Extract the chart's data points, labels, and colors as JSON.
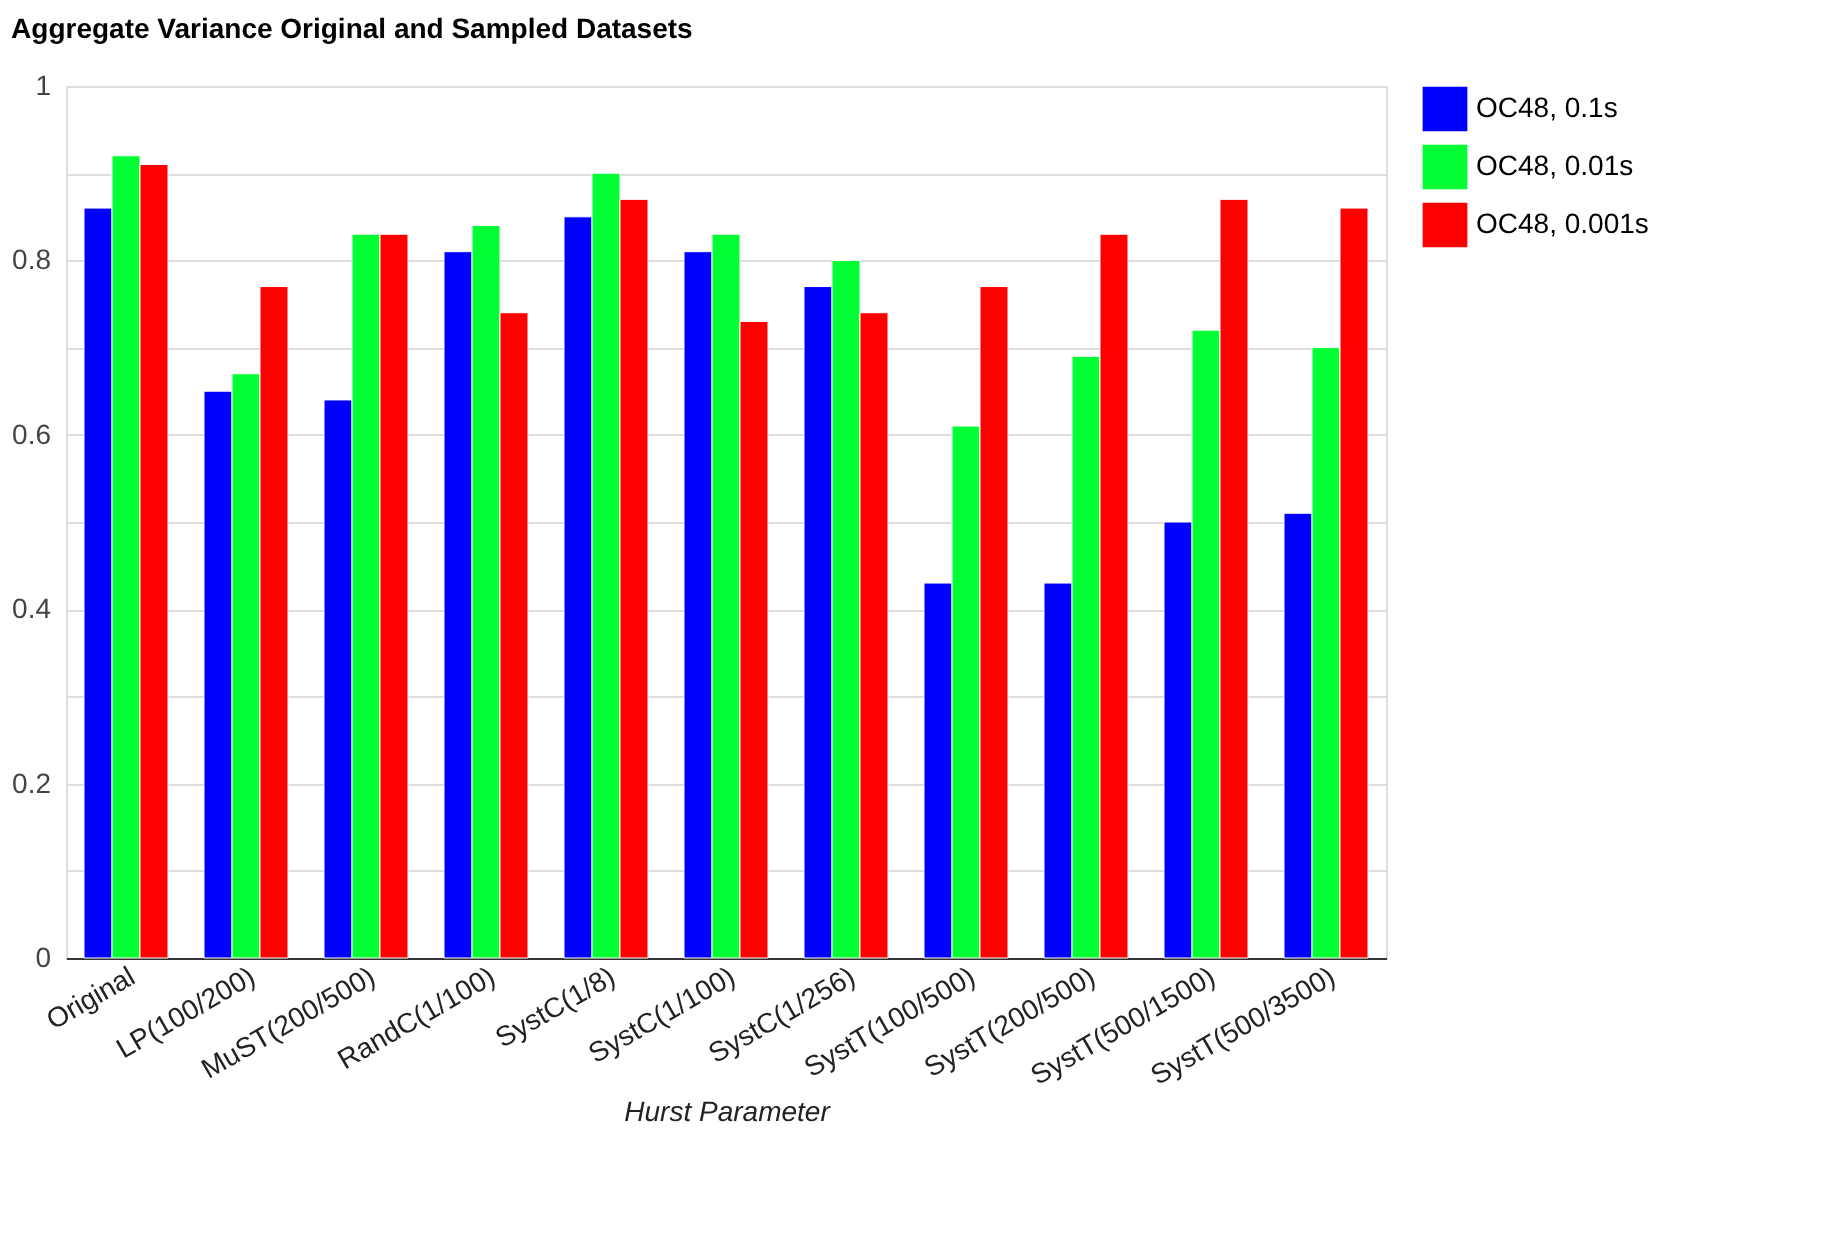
{
  "chart_data": {
    "type": "bar",
    "title": "Aggregate Variance Original and Sampled Datasets",
    "xlabel": "Hurst Parameter",
    "categories": [
      "Original",
      "LP(100/200)",
      "MuST(200/500)",
      "RandC(1/100)",
      "SystC(1/8)",
      "SystC(1/100)",
      "SystC(1/256)",
      "SystT(100/500)",
      "SystT(200/500)",
      "SystT(500/1500)",
      "SystT(500/3500)"
    ],
    "series": [
      {
        "name": "OC48, 0.1s",
        "color": "#0000ff",
        "values": [
          0.86,
          0.65,
          0.64,
          0.81,
          0.85,
          0.81,
          0.77,
          0.43,
          0.43,
          0.5,
          0.51
        ]
      },
      {
        "name": "OC48, 0.01s",
        "color": "#00ff33",
        "values": [
          0.92,
          0.67,
          0.83,
          0.84,
          0.9,
          0.83,
          0.8,
          0.61,
          0.69,
          0.72,
          0.7
        ]
      },
      {
        "name": "OC48, 0.001s",
        "color": "#ff0000",
        "values": [
          0.91,
          0.77,
          0.83,
          0.74,
          0.87,
          0.73,
          0.74,
          0.77,
          0.83,
          0.87,
          0.86
        ]
      }
    ],
    "ylim": [
      0,
      1
    ],
    "yticks": [
      0,
      {
        "value": 0.1,
        "label": null
      },
      0.2,
      {
        "value": 0.3,
        "label": null
      },
      0.4,
      {
        "value": 0.5,
        "label": null
      },
      0.6,
      {
        "value": 0.7,
        "label": null
      },
      0.8,
      {
        "value": 0.9,
        "label": null
      },
      1
    ],
    "grid": "y",
    "legend": "top right"
  }
}
